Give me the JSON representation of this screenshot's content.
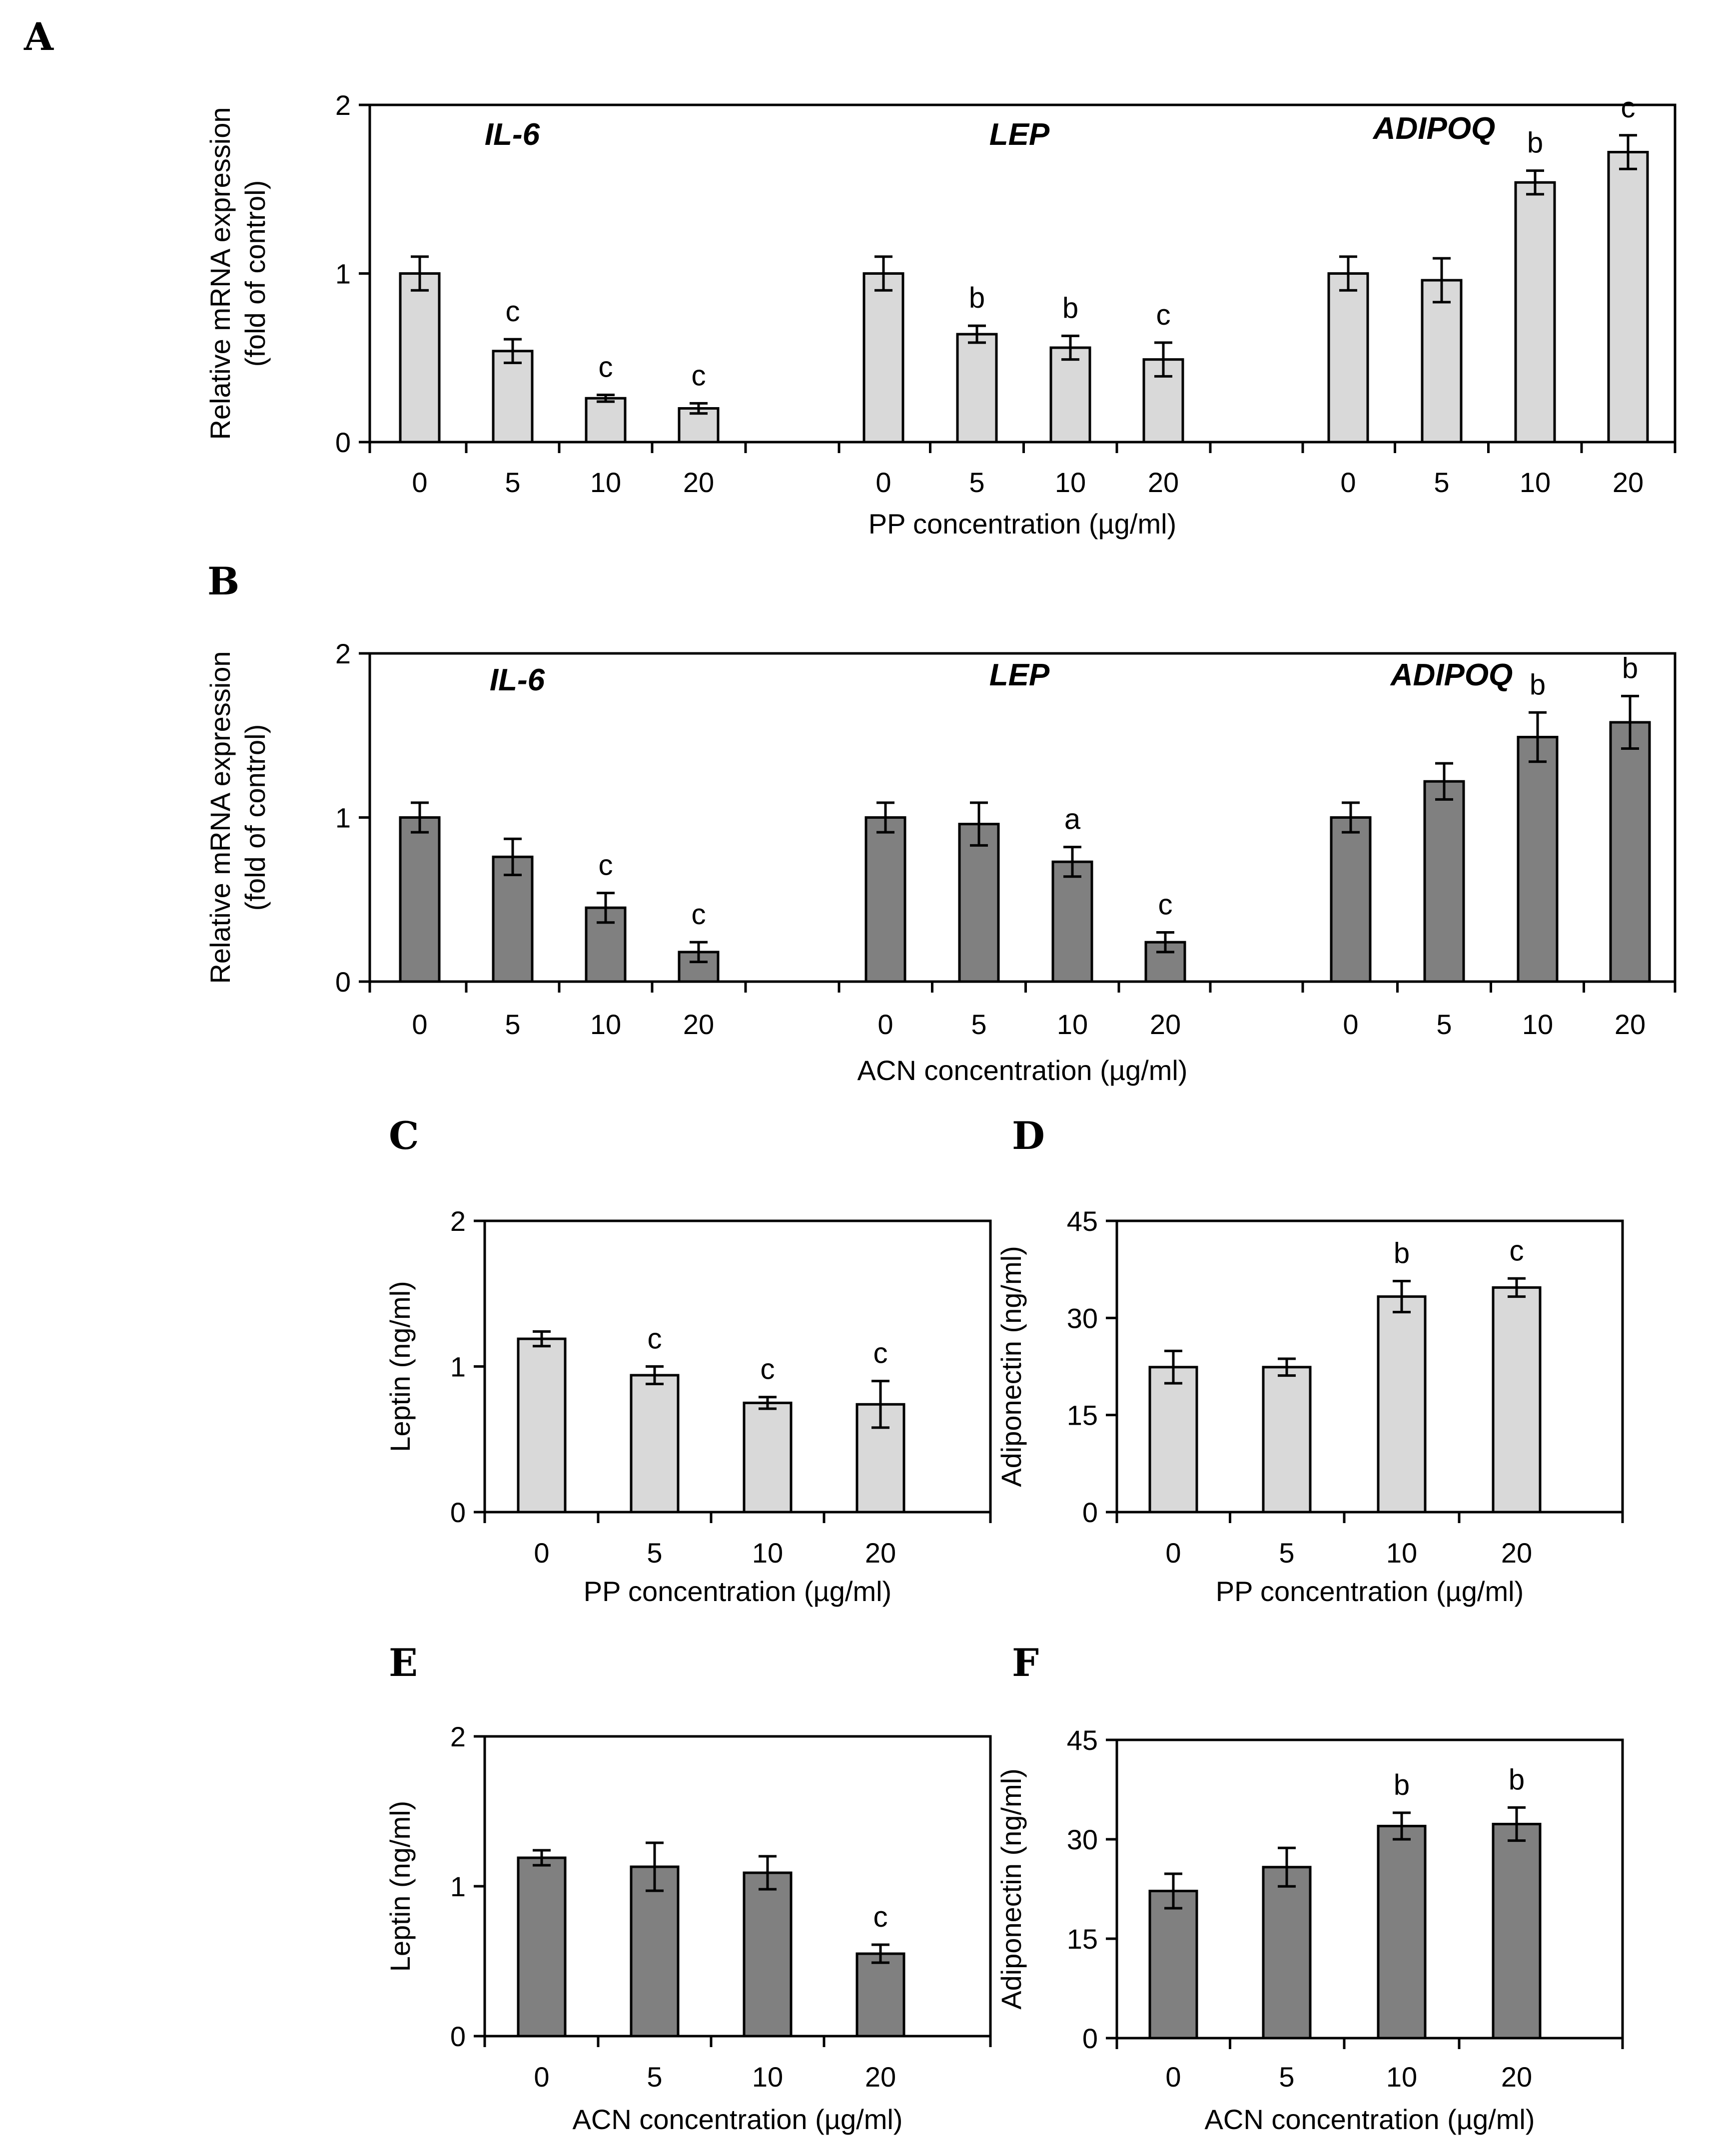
{
  "chart_data": [
    {
      "id": "A",
      "type": "bar",
      "panel_label": "A",
      "ylabel_lines": [
        "Relative mRNA expression",
        "(fold of control)"
      ],
      "xlabel": "PP concentration (µg/ml)",
      "ylim": [
        0,
        2
      ],
      "yticks": [
        "0",
        "1",
        "2"
      ],
      "bar_color": "#d9d9d9",
      "groups": [
        {
          "gene": "IL-6",
          "categories": [
            "0",
            "5",
            "10",
            "20"
          ],
          "values": [
            1.0,
            0.54,
            0.26,
            0.2
          ],
          "errors": [
            0.1,
            0.07,
            0.02,
            0.03
          ],
          "sig": [
            "",
            "c",
            "c",
            "c"
          ]
        },
        {
          "gene": "LEP",
          "categories": [
            "0",
            "5",
            "10",
            "20"
          ],
          "values": [
            1.0,
            0.64,
            0.56,
            0.49
          ],
          "errors": [
            0.1,
            0.05,
            0.07,
            0.1
          ],
          "sig": [
            "",
            "b",
            "b",
            "c"
          ]
        },
        {
          "gene": "ADIPOQ",
          "categories": [
            "0",
            "5",
            "10",
            "20"
          ],
          "values": [
            1.0,
            0.96,
            1.54,
            1.72
          ],
          "errors": [
            0.1,
            0.13,
            0.07,
            0.1
          ],
          "sig": [
            "",
            "",
            "b",
            "c"
          ]
        }
      ]
    },
    {
      "id": "B",
      "type": "bar",
      "panel_label": "B",
      "ylabel_lines": [
        "Relative mRNA expression",
        "(fold of control)"
      ],
      "xlabel": "ACN concentration (µg/ml)",
      "ylim": [
        0,
        2
      ],
      "yticks": [
        "0",
        "1",
        "2"
      ],
      "bar_color": "#808080",
      "groups": [
        {
          "gene": "IL-6",
          "categories": [
            "0",
            "5",
            "10",
            "20"
          ],
          "values": [
            1.0,
            0.76,
            0.45,
            0.18
          ],
          "errors": [
            0.09,
            0.11,
            0.09,
            0.06
          ],
          "sig": [
            "",
            "",
            "c",
            "c"
          ]
        },
        {
          "gene": "LEP",
          "categories": [
            "0",
            "5",
            "10",
            "20"
          ],
          "values": [
            1.0,
            0.96,
            0.73,
            0.24
          ],
          "errors": [
            0.09,
            0.13,
            0.09,
            0.06
          ],
          "sig": [
            "",
            "",
            "a",
            "c"
          ]
        },
        {
          "gene": "ADIPOQ",
          "categories": [
            "0",
            "5",
            "10",
            "20"
          ],
          "values": [
            1.0,
            1.22,
            1.49,
            1.58
          ],
          "errors": [
            0.09,
            0.11,
            0.15,
            0.16
          ],
          "sig": [
            "",
            "",
            "b",
            "b"
          ]
        }
      ]
    },
    {
      "id": "C",
      "type": "bar",
      "panel_label": "C",
      "ylabel_lines": [
        "Leptin (ng/ml)"
      ],
      "xlabel": "PP concentration (µg/ml)",
      "ylim": [
        0,
        2
      ],
      "yticks": [
        "0",
        "1",
        "2"
      ],
      "bar_color": "#d9d9d9",
      "categories": [
        "0",
        "5",
        "10",
        "20"
      ],
      "values": [
        1.19,
        0.94,
        0.75,
        0.74
      ],
      "errors": [
        0.05,
        0.06,
        0.04,
        0.16
      ],
      "sig": [
        "",
        "c",
        "c",
        "c"
      ]
    },
    {
      "id": "D",
      "type": "bar",
      "panel_label": "D",
      "ylabel_lines": [
        "Adiponectin (ng/ml)"
      ],
      "xlabel": "PP concentration (µg/ml)",
      "ylim": [
        0,
        45
      ],
      "yticks": [
        "0",
        "15",
        "30",
        "45"
      ],
      "bar_color": "#d9d9d9",
      "categories": [
        "0",
        "5",
        "10",
        "20"
      ],
      "values": [
        22.4,
        22.4,
        33.3,
        34.7
      ],
      "errors": [
        2.5,
        1.3,
        2.4,
        1.4
      ],
      "sig": [
        "",
        "",
        "b",
        "c"
      ]
    },
    {
      "id": "E",
      "type": "bar",
      "panel_label": "E",
      "ylabel_lines": [
        "Leptin (ng/ml)"
      ],
      "xlabel": "ACN concentration (µg/ml)",
      "ylim": [
        0,
        2
      ],
      "yticks": [
        "0",
        "1",
        "2"
      ],
      "bar_color": "#808080",
      "categories": [
        "0",
        "5",
        "10",
        "20"
      ],
      "values": [
        1.19,
        1.13,
        1.09,
        0.55
      ],
      "errors": [
        0.05,
        0.16,
        0.11,
        0.06
      ],
      "sig": [
        "",
        "",
        "",
        "c"
      ]
    },
    {
      "id": "F",
      "type": "bar",
      "panel_label": "F",
      "ylabel_lines": [
        "Adiponectin (ng/ml)"
      ],
      "xlabel": "ACN concentration (µg/ml)",
      "ylim": [
        0,
        45
      ],
      "yticks": [
        "0",
        "15",
        "30",
        "45"
      ],
      "bar_color": "#808080",
      "categories": [
        "0",
        "5",
        "10",
        "20"
      ],
      "values": [
        22.2,
        25.8,
        32.0,
        32.3
      ],
      "errors": [
        2.6,
        2.9,
        2.0,
        2.5
      ],
      "sig": [
        "",
        "",
        "b",
        "b"
      ]
    }
  ]
}
